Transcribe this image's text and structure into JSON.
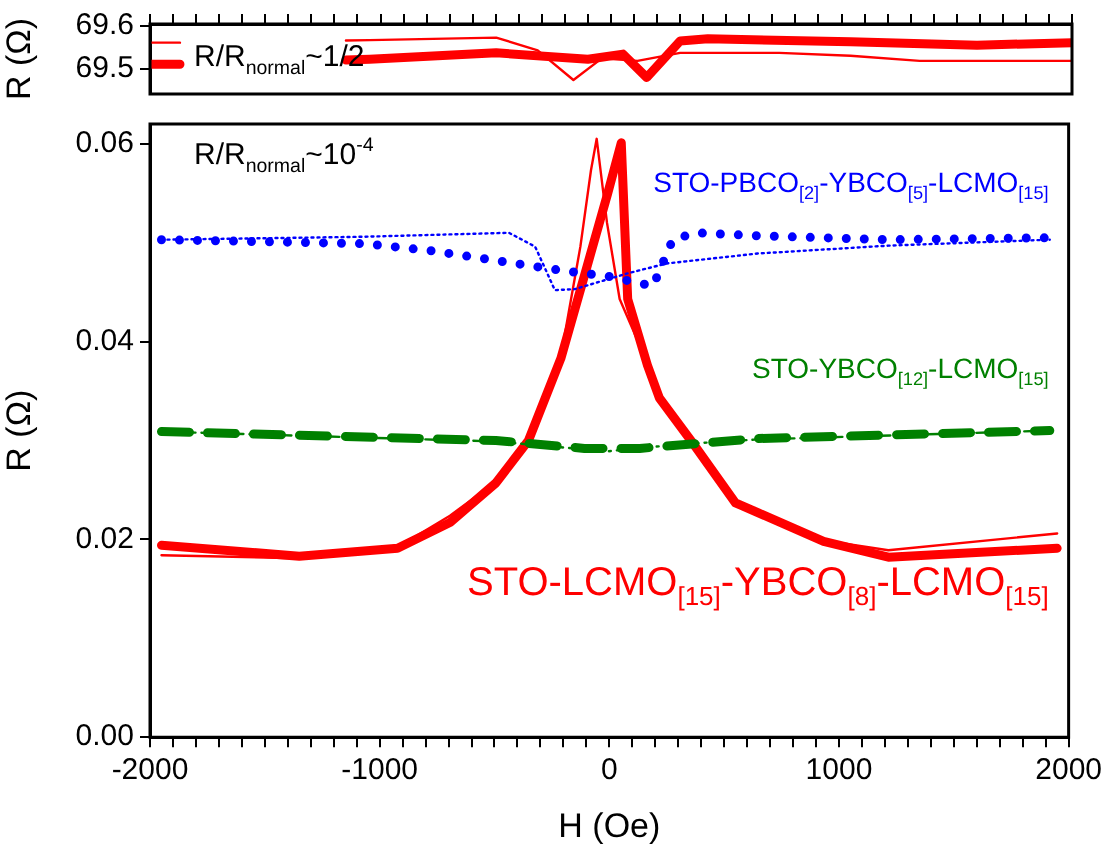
{
  "chart_data": [
    {
      "type": "line",
      "ylabel": "R (Ω)",
      "xlim": [
        -2000,
        2000
      ],
      "ylim": [
        69.44,
        69.605
      ],
      "yticks": [
        69.5,
        69.6
      ],
      "tick_labels": "y",
      "grid": false,
      "xticks": [
        -2000,
        {
          "value": -1900,
          "label": null
        },
        {
          "value": -1800,
          "label": null
        },
        {
          "value": -1700,
          "label": null
        },
        {
          "value": -1600,
          "label": null
        },
        {
          "value": -1500,
          "label": null
        },
        {
          "value": -1400,
          "label": null
        },
        {
          "value": -1300,
          "label": null
        },
        {
          "value": -1200,
          "label": null
        },
        {
          "value": -1100,
          "label": null
        },
        -1000,
        {
          "value": -900,
          "label": null
        },
        {
          "value": -800,
          "label": null
        },
        {
          "value": -700,
          "label": null
        },
        {
          "value": -600,
          "label": null
        },
        {
          "value": -500,
          "label": null
        },
        {
          "value": -400,
          "label": null
        },
        {
          "value": -300,
          "label": null
        },
        {
          "value": -200,
          "label": null
        },
        {
          "value": -100,
          "label": null
        },
        0,
        {
          "value": 100,
          "label": null
        },
        {
          "value": 200,
          "label": null
        },
        {
          "value": 300,
          "label": null
        },
        {
          "value": 400,
          "label": null
        },
        {
          "value": 500,
          "label": null
        },
        {
          "value": 600,
          "label": null
        },
        {
          "value": 700,
          "label": null
        },
        {
          "value": 800,
          "label": null
        },
        {
          "value": 900,
          "label": null
        },
        1000,
        {
          "value": 1100,
          "label": null
        },
        {
          "value": 1200,
          "label": null
        },
        {
          "value": 1300,
          "label": null
        },
        {
          "value": 1400,
          "label": null
        },
        {
          "value": 1500,
          "label": null
        },
        {
          "value": 1600,
          "label": null
        },
        {
          "value": 1700,
          "label": null
        },
        {
          "value": 1800,
          "label": null
        },
        {
          "value": 1900,
          "label": null
        },
        2000
      ],
      "annotations": [
        "R/R$_{normal}$~1/2"
      ],
      "series": [
        {
          "color": "#ff0000",
          "line_style": "solid",
          "x": [
            -2000,
            -1870,
            -1500,
            -1150,
            -1047,
            -498,
            -100,
            52,
            155,
            300,
            420,
            1039,
            1588,
            2000
          ],
          "values": [
            69.51,
            69.51,
            null,
            69.52,
            69.522,
            69.537,
            69.522,
            69.534,
            69.479,
            69.565,
            69.57,
            69.563,
            69.555,
            69.561
          ]
        },
        {
          "color": "#ff0000",
          "line_style": "solid",
          "x": [
            -2000,
            -1870,
            -1500,
            -1150,
            -1047,
            -498,
            -318,
            -163,
            -40,
            115,
            300,
            730,
            1039,
            1339,
            2000
          ],
          "values": [
            69.561,
            69.561,
            null,
            69.566,
            69.567,
            69.573,
            69.543,
            69.473,
            69.524,
            69.518,
            69.537,
            69.537,
            69.53,
            69.518,
            69.518
          ]
        }
      ]
    },
    {
      "type": "line",
      "xlabel": "H (Oe)",
      "ylabel": "R (Ω)",
      "xlim": [
        -2000,
        2000
      ],
      "ylim": [
        0,
        0.062
      ],
      "grid": false,
      "yticks": [
        {
          "value": 0,
          "label": "0.00"
        },
        {
          "value": 0.02,
          "label": "0.02"
        },
        {
          "value": 0.04,
          "label": "0.04"
        },
        {
          "value": 0.06,
          "label": "0.06"
        }
      ],
      "xticks": [
        -2000,
        {
          "value": -1900,
          "label": null
        },
        {
          "value": -1800,
          "label": null
        },
        {
          "value": -1700,
          "label": null
        },
        {
          "value": -1600,
          "label": null
        },
        {
          "value": -1500,
          "label": null
        },
        {
          "value": -1400,
          "label": null
        },
        {
          "value": -1300,
          "label": null
        },
        {
          "value": -1200,
          "label": null
        },
        {
          "value": -1100,
          "label": null
        },
        -1000,
        {
          "value": -900,
          "label": null
        },
        {
          "value": -800,
          "label": null
        },
        {
          "value": -700,
          "label": null
        },
        {
          "value": -600,
          "label": null
        },
        {
          "value": -500,
          "label": null
        },
        {
          "value": -400,
          "label": null
        },
        {
          "value": -300,
          "label": null
        },
        {
          "value": -200,
          "label": null
        },
        {
          "value": -100,
          "label": null
        },
        0,
        {
          "value": 100,
          "label": null
        },
        {
          "value": 200,
          "label": null
        },
        {
          "value": 300,
          "label": null
        },
        {
          "value": 400,
          "label": null
        },
        {
          "value": 500,
          "label": null
        },
        {
          "value": 600,
          "label": null
        },
        {
          "value": 700,
          "label": null
        },
        {
          "value": 800,
          "label": null
        },
        {
          "value": 900,
          "label": null
        },
        1000,
        {
          "value": 1100,
          "label": null
        },
        {
          "value": 1200,
          "label": null
        },
        {
          "value": 1300,
          "label": null
        },
        {
          "value": 1400,
          "label": null
        },
        {
          "value": 1500,
          "label": null
        },
        {
          "value": 1600,
          "label": null
        },
        {
          "value": 1700,
          "label": null
        },
        {
          "value": 1800,
          "label": null
        },
        {
          "value": 1900,
          "label": null
        },
        2000
      ],
      "annotations": [
        "R/R$_{normal}$~10$^{-4}$"
      ],
      "series": [
        {
          "name": "STO-PBCO$_{[2]}$-YBCO$_{[5]}$-LCMO$_{[15]}$",
          "color": "#0000ff",
          "line_style": "dotted",
          "x": [
            -1950,
            -1067,
            -780,
            -494,
            -211,
            -5,
            190,
            276,
            378,
            644,
            1215,
            1918
          ],
          "values": [
            0.0503,
            0.0499,
            0.0492,
            0.0482,
            0.0472,
            0.0466,
            0.0456,
            0.0503,
            0.051,
            0.0507,
            0.0503,
            0.0505
          ]
        },
        {
          "color": "#0000ff",
          "line_style": "dotted",
          "x": [
            -1950,
            -1067,
            -437,
            -323,
            -237,
            -151,
            80,
            250,
            644,
            1215,
            1918
          ],
          "values": [
            0.0503,
            0.0506,
            0.051,
            0.0496,
            0.0452,
            0.0453,
            0.0469,
            0.0479,
            0.0489,
            0.0497,
            0.0503
          ]
        },
        {
          "name": "STO-YBCO$_{[12]}$-LCMO$_{[15]}$",
          "color": "#008000",
          "line_style": "dashed",
          "x": [
            -1950,
            -494,
            -108,
            132,
            644,
            1918
          ],
          "values": [
            0.0309,
            0.03,
            0.0292,
            0.0292,
            0.0302,
            0.031
          ]
        },
        {
          "color": "#008000",
          "line_style": "dashed",
          "x": [
            -1950,
            -494,
            -10,
            300,
            644,
            1918
          ],
          "values": [
            0.0309,
            0.0299,
            0.0289,
            0.0296,
            0.0301,
            0.031
          ]
        },
        {
          "name": "STO-LCMO$_{[15]}$-YBCO$_{[8]}$-LCMO$_{[15]}$",
          "color": "#ff0000",
          "line_style": "solid",
          "x": [
            -1950,
            -1350,
            -922,
            -694,
            -494,
            -352,
            -211,
            -97,
            -8,
            52,
            80,
            166,
            218,
            365,
            549,
            933,
            1215,
            1950
          ],
          "values": [
            0.0194,
            0.0183,
            0.0191,
            0.0217,
            0.0257,
            0.03,
            0.0383,
            0.0476,
            0.0549,
            0.0601,
            0.0443,
            0.0376,
            0.0343,
            0.0297,
            0.0237,
            0.0198,
            0.0182,
            0.0191
          ]
        },
        {
          "color": "#ff0000",
          "line_style": "solid",
          "x": [
            -1950,
            -1350,
            -922,
            -694,
            -494,
            -352,
            -211,
            -126,
            -80,
            -55,
            -10,
            45,
            166,
            218,
            365,
            549,
            933,
            1215,
            1950
          ],
          "values": [
            0.0184,
            0.0181,
            0.0192,
            0.0224,
            0.0258,
            0.0301,
            0.0385,
            0.0496,
            0.0573,
            0.0605,
            0.052,
            0.0443,
            0.0378,
            0.0345,
            0.0298,
            0.0238,
            0.0199,
            0.0189,
            0.0206
          ]
        }
      ]
    }
  ]
}
